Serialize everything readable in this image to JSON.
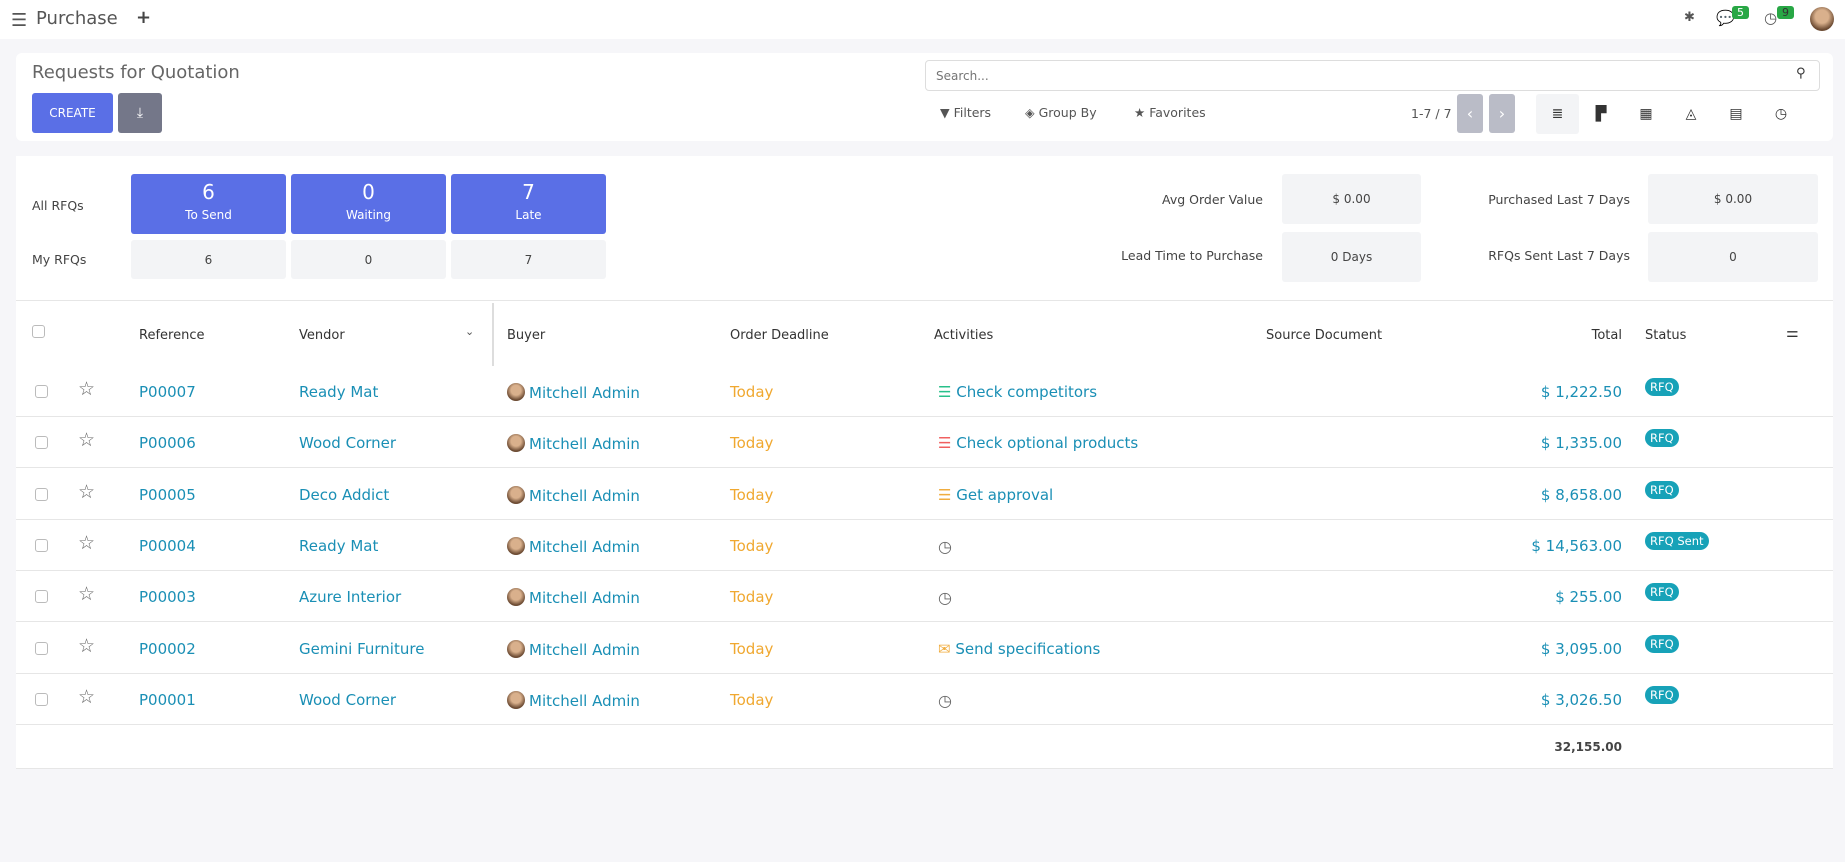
{
  "app": {
    "title": "Purchase",
    "notifications": {
      "messages": "5",
      "activities": "9"
    }
  },
  "control": {
    "title": "Requests for Quotation",
    "create": "CREATE",
    "search_placeholder": "Search...",
    "filters": "Filters",
    "group_by": "Group By",
    "favorites": "Favorites",
    "pager": "1-7 / 7"
  },
  "dashboard": {
    "all_label": "All RFQs",
    "my_label": "My RFQs",
    "tiles": [
      {
        "count": "6",
        "label": "To Send",
        "mine": "6"
      },
      {
        "count": "0",
        "label": "Waiting",
        "mine": "0"
      },
      {
        "count": "7",
        "label": "Late",
        "mine": "7"
      }
    ],
    "stats": [
      {
        "label": "Avg Order Value",
        "value": "$ 0.00"
      },
      {
        "label": "Purchased Last 7 Days",
        "value": "$ 0.00"
      },
      {
        "label": "Lead Time to Purchase",
        "value": "0 Days"
      },
      {
        "label": "RFQs Sent Last 7 Days",
        "value": "0"
      }
    ]
  },
  "table": {
    "columns": [
      "Reference",
      "Vendor",
      "Buyer",
      "Order Deadline",
      "Activities",
      "Source Document",
      "Total",
      "Status"
    ],
    "rows": [
      {
        "ref": "P00007",
        "vendor": "Ready Mat",
        "buyer": "Mitchell Admin",
        "deadline": "Today",
        "activity": "Check competitors",
        "activity_color": "#28c08a",
        "total": "$ 1,222.50",
        "status": "RFQ"
      },
      {
        "ref": "P00006",
        "vendor": "Wood Corner",
        "buyer": "Mitchell Admin",
        "deadline": "Today",
        "activity": "Check optional products",
        "activity_color": "#f06060",
        "total": "$ 1,335.00",
        "status": "RFQ"
      },
      {
        "ref": "P00005",
        "vendor": "Deco Addict",
        "buyer": "Mitchell Admin",
        "deadline": "Today",
        "activity": "Get approval",
        "activity_color": "#f0ad40",
        "total": "$ 8,658.00",
        "status": "RFQ"
      },
      {
        "ref": "P00004",
        "vendor": "Ready Mat",
        "buyer": "Mitchell Admin",
        "deadline": "Today",
        "activity": "",
        "activity_color": "",
        "total": "$ 14,563.00",
        "status": "RFQ Sent"
      },
      {
        "ref": "P00003",
        "vendor": "Azure Interior",
        "buyer": "Mitchell Admin",
        "deadline": "Today",
        "activity": "",
        "activity_color": "",
        "total": "$ 255.00",
        "status": "RFQ"
      },
      {
        "ref": "P00002",
        "vendor": "Gemini Furniture",
        "buyer": "Mitchell Admin",
        "deadline": "Today",
        "activity": "Send specifications",
        "activity_color": "#f0ad40",
        "total": "$ 3,095.00",
        "status": "RFQ"
      },
      {
        "ref": "P00001",
        "vendor": "Wood Corner",
        "buyer": "Mitchell Admin",
        "deadline": "Today",
        "activity": "",
        "activity_color": "",
        "total": "$ 3,026.50",
        "status": "RFQ"
      }
    ],
    "sum_total": "32,155.00"
  },
  "colors": {
    "primary": "#5a6fe6",
    "link": "#1a8fb5",
    "deadline": "#f0a830",
    "badge": "#17a2b8"
  }
}
